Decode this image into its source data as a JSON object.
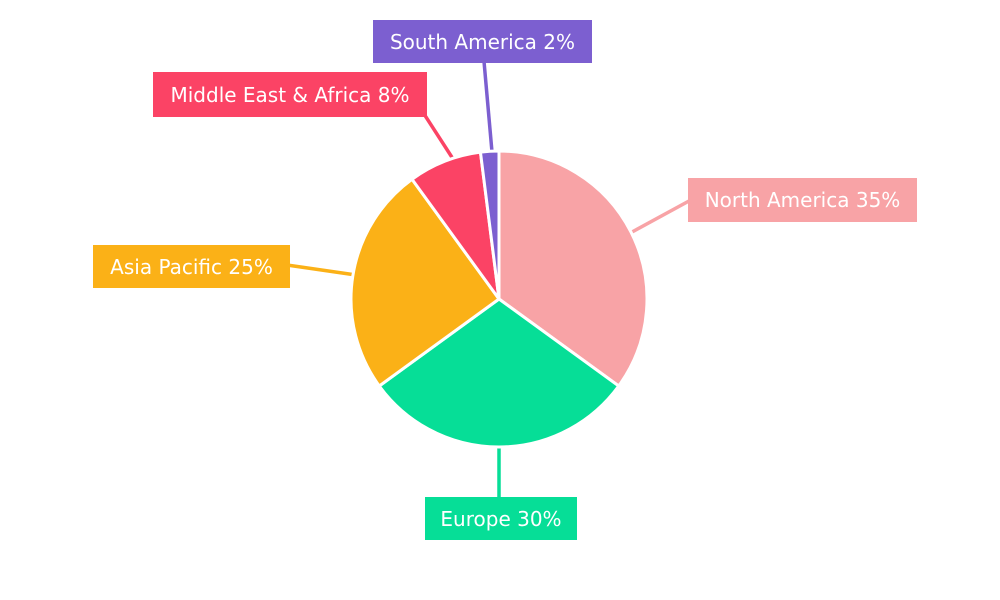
{
  "chart_data": {
    "type": "pie",
    "title": "",
    "categories": [
      "North America",
      "Europe",
      "Asia Pacific",
      "Middle East & Africa",
      "South America"
    ],
    "values": [
      35,
      30,
      25,
      8,
      2
    ],
    "unit": "%",
    "labels": [
      "North America 35%",
      "Europe 30%",
      "Asia Pacific 25%",
      "Middle East & Africa 8%",
      "South America 2%"
    ],
    "colors": [
      "#F8A3A6",
      "#06DE97",
      "#FBB117",
      "#FB4365",
      "#7C5FD0"
    ],
    "slice_border_color": "#FFFFFF",
    "label_text_color": "#FFFFFF",
    "background": "#FFFFFF",
    "start_angle_deg": 0,
    "direction": "clockwise",
    "legend": "none",
    "annotation_style": "external-callout-boxes-with-leader-lines"
  }
}
